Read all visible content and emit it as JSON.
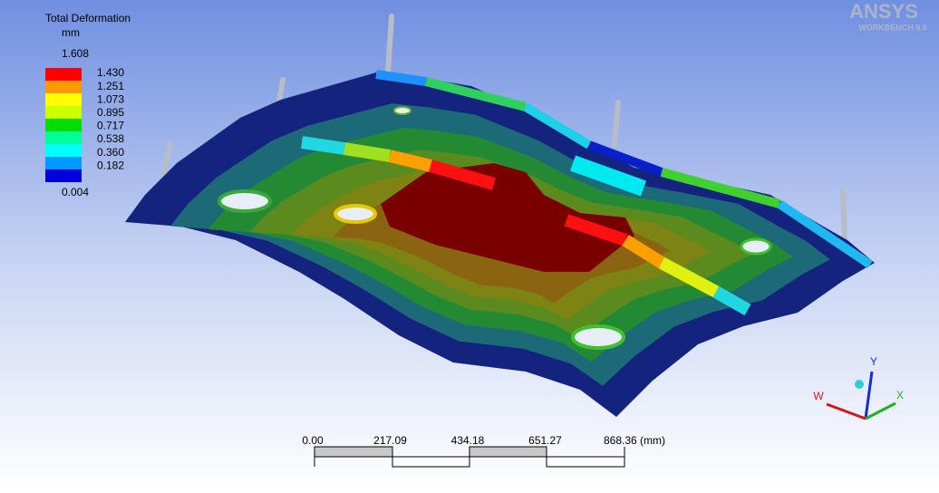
{
  "legend": {
    "title": "Total Deformation",
    "unit": "mm",
    "max": "1.608",
    "levels": [
      "1.430",
      "1.251",
      "1.073",
      "0.895",
      "0.717",
      "0.538",
      "0.360",
      "0.182"
    ],
    "min": "0.004"
  },
  "scale_bar": {
    "labels": [
      "0.00",
      "217.09",
      "434.18",
      "651.27"
    ],
    "end_label": "868.36 (mm)"
  },
  "triad": {
    "y": "Y",
    "x": "X",
    "w": "W"
  },
  "logo": {
    "name": "ANSYS",
    "product": "WORKBENCH 9.0"
  }
}
